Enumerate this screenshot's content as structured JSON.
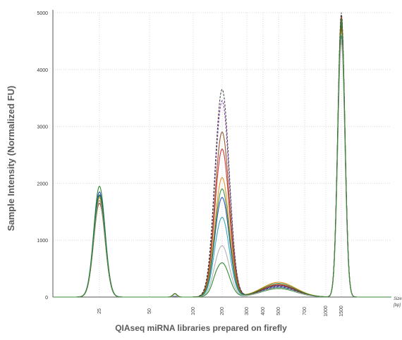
{
  "chart_data": {
    "type": "line",
    "title": "QIAseq miRNA libraries prepared on firefly",
    "ylabel": "Sample Intensity (Normalized FU)",
    "xlabel": "Size [bp]",
    "xlabel_lines": [
      "Size",
      "[bp]"
    ],
    "ylim": [
      0,
      5000
    ],
    "yticks": [
      0,
      1000,
      2000,
      3000,
      4000,
      5000
    ],
    "xticks": [
      25,
      50,
      100,
      200,
      300,
      400,
      500,
      700,
      1000,
      1500
    ],
    "grid": true,
    "legend": "none",
    "series": [
      {
        "color": "#1a7f1a",
        "dash": false,
        "peaks": [
          [
            25,
            1950
          ],
          [
            200,
            600
          ],
          [
            500,
            150
          ],
          [
            1500,
            4800
          ]
        ]
      },
      {
        "color": "#1f3fbf",
        "dash": false,
        "peaks": [
          [
            25,
            1850
          ],
          [
            200,
            1750
          ],
          [
            500,
            200
          ],
          [
            1500,
            4900
          ]
        ]
      },
      {
        "color": "#d02020",
        "dash": false,
        "peaks": [
          [
            25,
            1700
          ],
          [
            200,
            2600
          ],
          [
            500,
            220
          ],
          [
            1500,
            4950
          ]
        ]
      },
      {
        "color": "#e08a10",
        "dash": false,
        "peaks": [
          [
            25,
            1750
          ],
          [
            200,
            2100
          ],
          [
            500,
            260
          ],
          [
            1500,
            4700
          ]
        ]
      },
      {
        "color": "#7a2aa8",
        "dash": true,
        "peaks": [
          [
            25,
            1800
          ],
          [
            200,
            3450
          ],
          [
            500,
            190
          ],
          [
            1500,
            4850
          ]
        ]
      },
      {
        "color": "#20a0b0",
        "dash": false,
        "peaks": [
          [
            25,
            1800
          ],
          [
            200,
            1400
          ],
          [
            500,
            170
          ],
          [
            1500,
            4600
          ]
        ]
      },
      {
        "color": "#8b4513",
        "dash": false,
        "peaks": [
          [
            25,
            1650
          ],
          [
            200,
            2900
          ],
          [
            500,
            210
          ],
          [
            1500,
            4750
          ]
        ]
      },
      {
        "color": "#333333",
        "dash": true,
        "peaks": [
          [
            25,
            1800
          ],
          [
            200,
            3650
          ],
          [
            500,
            180
          ],
          [
            1500,
            5000
          ]
        ]
      },
      {
        "color": "#aaaaaa",
        "dash": false,
        "peaks": [
          [
            25,
            1700
          ],
          [
            200,
            900
          ],
          [
            500,
            160
          ],
          [
            1500,
            4500
          ]
        ]
      },
      {
        "color": "#2a8a2a",
        "dash": false,
        "peaks": [
          [
            25,
            1780
          ],
          [
            200,
            1900
          ],
          [
            500,
            240
          ],
          [
            1500,
            4900
          ]
        ]
      }
    ]
  }
}
